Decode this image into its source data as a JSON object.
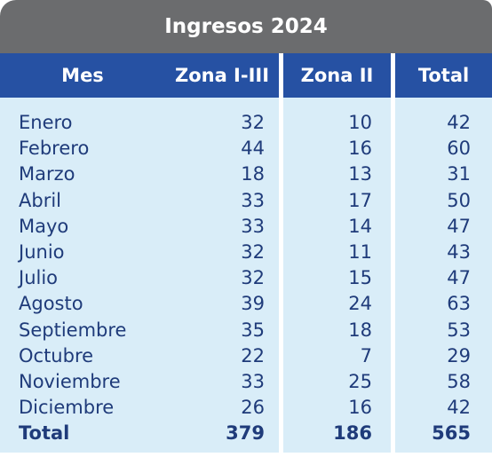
{
  "title": "Ingresos 2024",
  "colors": {
    "title_bg": "#6b6c6e",
    "header_bg": "#2651a3",
    "body_bg": "#d9edf8",
    "text": "#1f3b7a"
  },
  "headers": [
    "Mes",
    "Zona I-III",
    "Zona II",
    "Total"
  ],
  "rows": [
    {
      "mes": "Enero",
      "z1": "32",
      "z2": "10",
      "total": "42"
    },
    {
      "mes": "Febrero",
      "z1": "44",
      "z2": "16",
      "total": "60"
    },
    {
      "mes": "Marzo",
      "z1": "18",
      "z2": "13",
      "total": "31"
    },
    {
      "mes": "Abril",
      "z1": "33",
      "z2": "17",
      "total": "50"
    },
    {
      "mes": "Mayo",
      "z1": "33",
      "z2": "14",
      "total": "47"
    },
    {
      "mes": "Junio",
      "z1": "32",
      "z2": "11",
      "total": "43"
    },
    {
      "mes": "Julio",
      "z1": "32",
      "z2": "15",
      "total": "47"
    },
    {
      "mes": "Agosto",
      "z1": "39",
      "z2": "24",
      "total": "63"
    },
    {
      "mes": "Septiembre",
      "z1": "35",
      "z2": "18",
      "total": "53"
    },
    {
      "mes": "Octubre",
      "z1": "22",
      "z2": "7",
      "total": "29"
    },
    {
      "mes": "Noviembre",
      "z1": "33",
      "z2": "25",
      "total": "58"
    },
    {
      "mes": "Diciembre",
      "z1": "26",
      "z2": "16",
      "total": "42"
    }
  ],
  "totals": {
    "mes": "Total",
    "z1": "379",
    "z2": "186",
    "total": "565"
  },
  "chart_data": {
    "type": "table",
    "title": "Ingresos 2024",
    "columns": [
      "Mes",
      "Zona I-III",
      "Zona II",
      "Total"
    ],
    "categories": [
      "Enero",
      "Febrero",
      "Marzo",
      "Abril",
      "Mayo",
      "Junio",
      "Julio",
      "Agosto",
      "Septiembre",
      "Octubre",
      "Noviembre",
      "Diciembre"
    ],
    "series": [
      {
        "name": "Zona I-III",
        "values": [
          32,
          44,
          18,
          33,
          33,
          32,
          32,
          39,
          35,
          22,
          33,
          26
        ]
      },
      {
        "name": "Zona II",
        "values": [
          10,
          16,
          13,
          17,
          14,
          11,
          15,
          24,
          18,
          7,
          25,
          16
        ]
      },
      {
        "name": "Total",
        "values": [
          42,
          60,
          31,
          50,
          47,
          43,
          47,
          63,
          53,
          29,
          58,
          42
        ]
      }
    ],
    "totals": {
      "Zona I-III": 379,
      "Zona II": 186,
      "Total": 565
    }
  }
}
